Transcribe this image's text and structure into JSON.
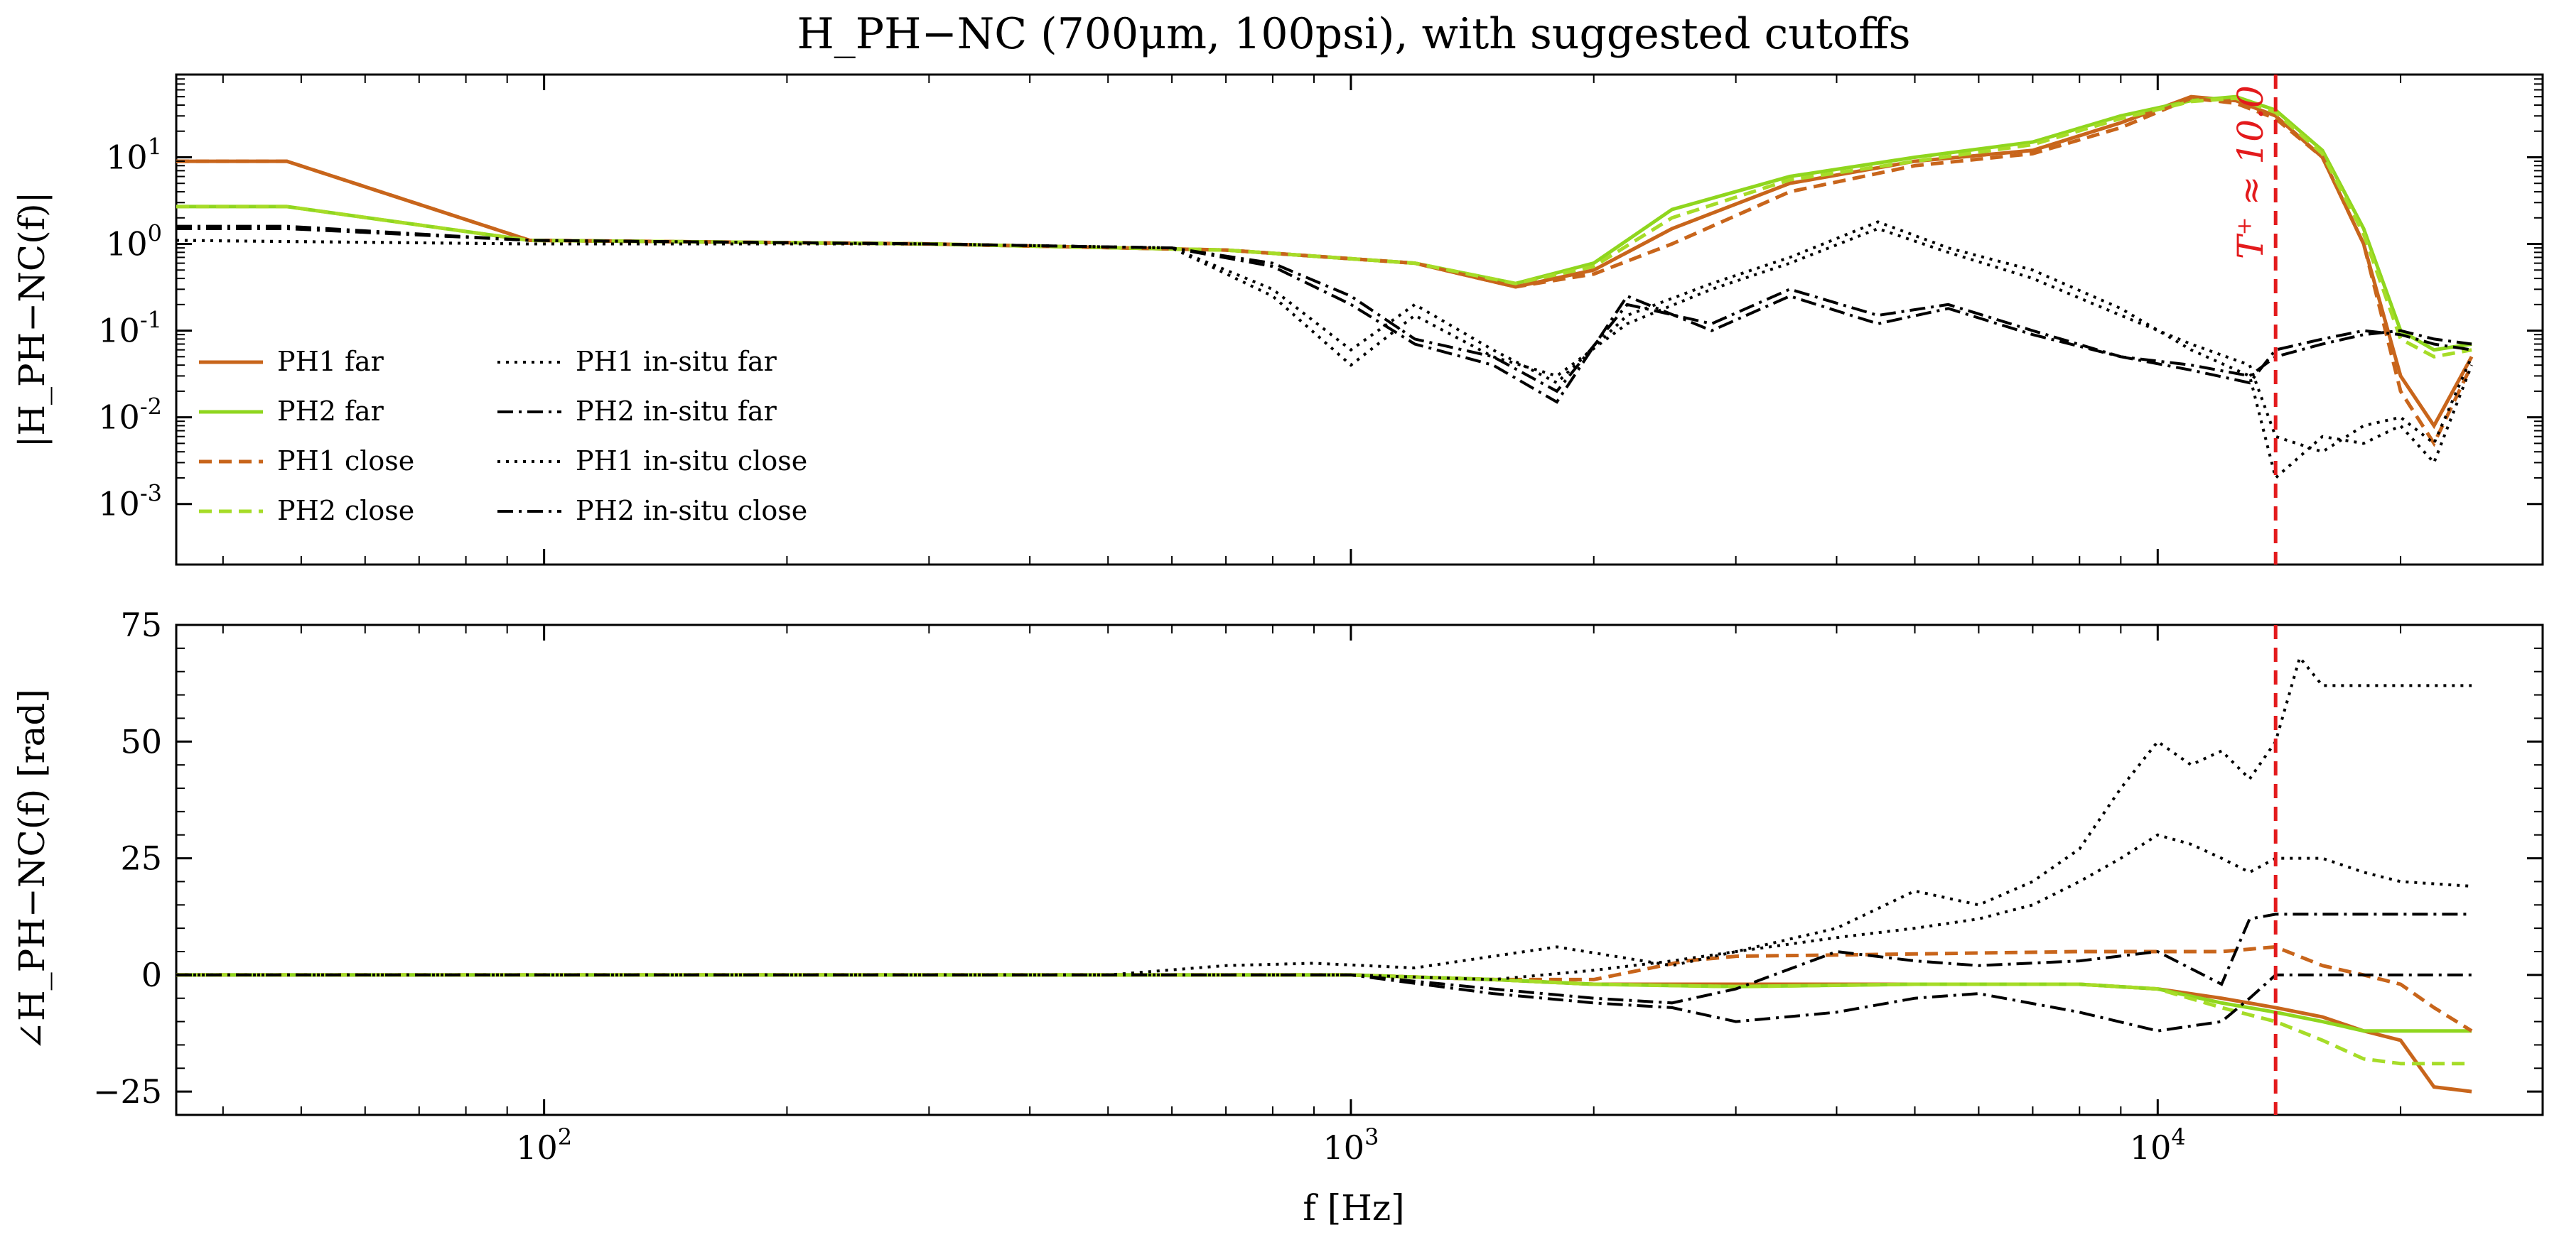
{
  "chart_data": {
    "title": "H_PH−NC (700μm, 100psi), with suggested cutoffs",
    "xlabel": "f [Hz]",
    "xscale": "log",
    "xlim": [
      35,
      30000
    ],
    "x_tick_labels": [
      "10^2",
      "10^3",
      "10^4"
    ],
    "cutoff": {
      "frequency": 14000,
      "label": "T⁺ ≈ 10.0",
      "color": "#e31a1c"
    },
    "panels": [
      {
        "id": "magnitude",
        "type": "line",
        "ylabel": "|H_PH−NC(f)|",
        "yscale": "log",
        "ylim": [
          0.0002,
          90
        ],
        "y_tick_labels": [
          "10^1",
          "10^0",
          "10^-1",
          "10^-2",
          "10^-3"
        ],
        "legend_position": "lower-left",
        "series": [
          {
            "name": "PH1 far",
            "color": "#c8651b",
            "style": "solid",
            "x": [
              35,
              48,
              96,
              300,
              700,
              1200,
              1600,
              2000,
              2500,
              3500,
              5000,
              7000,
              9000,
              11000,
              12500,
              14000,
              16000,
              18000,
              20000,
              22000,
              24500
            ],
            "y": [
              9,
              9,
              1.1,
              1.0,
              0.85,
              0.6,
              0.32,
              0.5,
              1.5,
              5,
              9,
              12,
              25,
              50,
              45,
              30,
              10,
              1,
              0.03,
              0.008,
              0.05
            ]
          },
          {
            "name": "PH2 far",
            "color": "#8fd61e",
            "style": "solid",
            "x": [
              35,
              48,
              96,
              300,
              700,
              1200,
              1600,
              2000,
              2500,
              3500,
              5000,
              7000,
              9000,
              11000,
              12500,
              14000,
              16000,
              18000,
              20000,
              22000,
              24500
            ],
            "y": [
              2.7,
              2.7,
              1.1,
              1.0,
              0.85,
              0.6,
              0.35,
              0.6,
              2.5,
              6,
              10,
              15,
              30,
              45,
              50,
              35,
              12,
              1.5,
              0.1,
              0.06,
              0.07
            ]
          },
          {
            "name": "PH1 close",
            "color": "#c8651b",
            "style": "dashed",
            "x": [
              35,
              48,
              96,
              300,
              700,
              1200,
              1600,
              2000,
              2500,
              3500,
              5000,
              7000,
              9000,
              11000,
              12500,
              14000,
              16000,
              18000,
              20000,
              22000,
              24500
            ],
            "y": [
              9,
              9,
              1.1,
              1.0,
              0.85,
              0.6,
              0.32,
              0.45,
              1.0,
              4,
              8,
              11,
              22,
              48,
              42,
              28,
              10,
              1,
              0.02,
              0.005,
              0.04
            ]
          },
          {
            "name": "PH2 close",
            "color": "#a6dc28",
            "style": "dashed",
            "x": [
              35,
              48,
              96,
              300,
              700,
              1200,
              1600,
              2000,
              2500,
              3500,
              5000,
              7000,
              9000,
              11000,
              12500,
              14000,
              16000,
              18000,
              20000,
              22000,
              24500
            ],
            "y": [
              2.7,
              2.7,
              1.1,
              1.0,
              0.85,
              0.6,
              0.35,
              0.55,
              2.0,
              5.5,
              9,
              14,
              28,
              44,
              48,
              33,
              11,
              1.3,
              0.08,
              0.05,
              0.06
            ]
          },
          {
            "name": "PH1 in-situ far",
            "color": "#000000",
            "style": "dotted",
            "x": [
              35,
              96,
              300,
              600,
              800,
              1000,
              1200,
              1500,
              1800,
              2200,
              2800,
              3500,
              4500,
              5500,
              7000,
              9000,
              11000,
              13000,
              14000,
              16000,
              18000,
              20000,
              22000,
              24500
            ],
            "y": [
              1.1,
              1.0,
              1.0,
              0.9,
              0.25,
              0.04,
              0.15,
              0.05,
              0.03,
              0.12,
              0.3,
              0.6,
              1.5,
              0.8,
              0.4,
              0.15,
              0.07,
              0.04,
              0.006,
              0.004,
              0.008,
              0.01,
              0.005,
              0.05
            ]
          },
          {
            "name": "PH2 in-situ far",
            "color": "#000000",
            "style": "dashdot",
            "x": [
              35,
              48,
              96,
              300,
              600,
              800,
              1000,
              1200,
              1500,
              1800,
              2200,
              2800,
              3500,
              4500,
              5500,
              7000,
              9000,
              11000,
              13000,
              14000,
              16000,
              18000,
              20000,
              22000,
              24500
            ],
            "y": [
              1.6,
              1.6,
              1.1,
              1.0,
              0.9,
              0.6,
              0.25,
              0.08,
              0.05,
              0.02,
              0.2,
              0.12,
              0.3,
              0.15,
              0.2,
              0.1,
              0.05,
              0.04,
              0.03,
              0.05,
              0.07,
              0.09,
              0.1,
              0.08,
              0.07
            ]
          },
          {
            "name": "PH1 in-situ close",
            "color": "#000000",
            "style": "dotted",
            "x": [
              35,
              96,
              300,
              600,
              800,
              1000,
              1200,
              1500,
              1800,
              2200,
              2800,
              3500,
              4500,
              5500,
              7000,
              9000,
              11000,
              13000,
              14000,
              16000,
              18000,
              20000,
              22000,
              24500
            ],
            "y": [
              1.1,
              1.0,
              1.0,
              0.9,
              0.3,
              0.06,
              0.2,
              0.06,
              0.025,
              0.15,
              0.35,
              0.7,
              1.8,
              0.9,
              0.5,
              0.18,
              0.06,
              0.03,
              0.002,
              0.006,
              0.005,
              0.008,
              0.003,
              0.04
            ]
          },
          {
            "name": "PH2 in-situ close",
            "color": "#000000",
            "style": "dashdot",
            "x": [
              35,
              48,
              96,
              300,
              600,
              800,
              1000,
              1200,
              1500,
              1800,
              2200,
              2800,
              3500,
              4500,
              5500,
              7000,
              9000,
              11000,
              13000,
              14000,
              16000,
              18000,
              20000,
              22000,
              24500
            ],
            "y": [
              1.5,
              1.5,
              1.1,
              1.0,
              0.9,
              0.55,
              0.2,
              0.07,
              0.04,
              0.015,
              0.25,
              0.1,
              0.25,
              0.12,
              0.18,
              0.09,
              0.05,
              0.035,
              0.025,
              0.06,
              0.08,
              0.1,
              0.09,
              0.07,
              0.06
            ]
          }
        ]
      },
      {
        "id": "phase",
        "type": "line",
        "ylabel": "∠H_PH−NC(f) [rad]",
        "yscale": "linear",
        "ylim": [
          -30,
          75
        ],
        "y_ticks": [
          75,
          50,
          25,
          0,
          -25
        ],
        "series": [
          {
            "name": "PH1 far",
            "color": "#c8651b",
            "style": "solid",
            "x": [
              35,
              500,
              1000,
              1500,
              2000,
              3000,
              5000,
              8000,
              10000,
              12000,
              14000,
              16000,
              18000,
              20000,
              22000,
              24500
            ],
            "y": [
              0,
              0,
              0,
              -1,
              -2,
              -2,
              -2,
              -2,
              -3,
              -5,
              -7,
              -9,
              -12,
              -14,
              -24,
              -25
            ]
          },
          {
            "name": "PH2 far",
            "color": "#8fd61e",
            "style": "solid",
            "x": [
              35,
              500,
              1000,
              1500,
              2000,
              3000,
              5000,
              8000,
              10000,
              12000,
              14000,
              16000,
              18000,
              20000,
              22000,
              24500
            ],
            "y": [
              0,
              0,
              0,
              -1,
              -2,
              -2.5,
              -2,
              -2,
              -3,
              -6,
              -8,
              -10,
              -12,
              -12,
              -12,
              -12
            ]
          },
          {
            "name": "PH1 close",
            "color": "#c8651b",
            "style": "dashed",
            "x": [
              35,
              500,
              1000,
              1500,
              2000,
              2600,
              3000,
              5000,
              8000,
              10000,
              12000,
              14000,
              16000,
              18000,
              20000,
              22000,
              24500
            ],
            "y": [
              0,
              0,
              0,
              -1,
              -1,
              3,
              4,
              4.5,
              5,
              5,
              5,
              6,
              2,
              0,
              -2,
              -7,
              -12
            ]
          },
          {
            "name": "PH2 close",
            "color": "#a6dc28",
            "style": "dashed",
            "x": [
              35,
              500,
              1000,
              1500,
              2000,
              3000,
              5000,
              8000,
              10000,
              12000,
              14000,
              16000,
              18000,
              20000,
              22000,
              24500
            ],
            "y": [
              0,
              0,
              0,
              -1,
              -2,
              -2.5,
              -2,
              -2,
              -3,
              -7,
              -10,
              -14,
              -18,
              -19,
              -19,
              -19
            ]
          },
          {
            "name": "PH1 in-situ far",
            "color": "#000000",
            "style": "dotted",
            "x": [
              35,
              500,
              700,
              900,
              1200,
              1500,
              1800,
              2500,
              3000,
              4000,
              5000,
              6000,
              7000,
              8000,
              9000,
              10000,
              11000,
              12000,
              13000,
              14000,
              15000,
              16000,
              18000,
              20000,
              24500
            ],
            "y": [
              0,
              0,
              2,
              2.5,
              1.5,
              4,
              6,
              2,
              5,
              10,
              18,
              15,
              20,
              27,
              40,
              50,
              45,
              48,
              42,
              50,
              68,
              62,
              62,
              62,
              62
            ]
          },
          {
            "name": "PH2 in-situ far",
            "color": "#000000",
            "style": "dashdot",
            "x": [
              35,
              500,
              1000,
              1500,
              2000,
              2500,
              3000,
              4000,
              5000,
              6000,
              8000,
              10000,
              12000,
              13000,
              14000,
              16000,
              20000,
              24500
            ],
            "y": [
              0,
              0,
              0,
              -3,
              -5,
              -6,
              -3,
              5,
              3,
              2,
              3,
              5,
              -2,
              12,
              13,
              13,
              13,
              13
            ]
          },
          {
            "name": "PH1 in-situ close",
            "color": "#000000",
            "style": "dotted",
            "x": [
              35,
              500,
              1000,
              1500,
              2000,
              2500,
              3000,
              4000,
              5000,
              6000,
              7000,
              8000,
              9000,
              10000,
              11000,
              12000,
              13000,
              14000,
              16000,
              18000,
              20000,
              24500
            ],
            "y": [
              0,
              0,
              0,
              -1,
              1,
              3,
              5,
              8,
              10,
              12,
              15,
              20,
              25,
              30,
              28,
              25,
              22,
              25,
              25,
              22,
              20,
              19
            ]
          },
          {
            "name": "PH2 in-situ close",
            "color": "#000000",
            "style": "dashdot",
            "x": [
              35,
              500,
              1000,
              1500,
              2000,
              2500,
              3000,
              4000,
              5000,
              6000,
              8000,
              10000,
              12000,
              13000,
              14000,
              16000,
              20000,
              24500
            ],
            "y": [
              0,
              0,
              0,
              -4,
              -6,
              -7,
              -10,
              -8,
              -5,
              -4,
              -8,
              -12,
              -10,
              -5,
              0,
              0,
              0,
              0
            ]
          }
        ]
      }
    ]
  }
}
